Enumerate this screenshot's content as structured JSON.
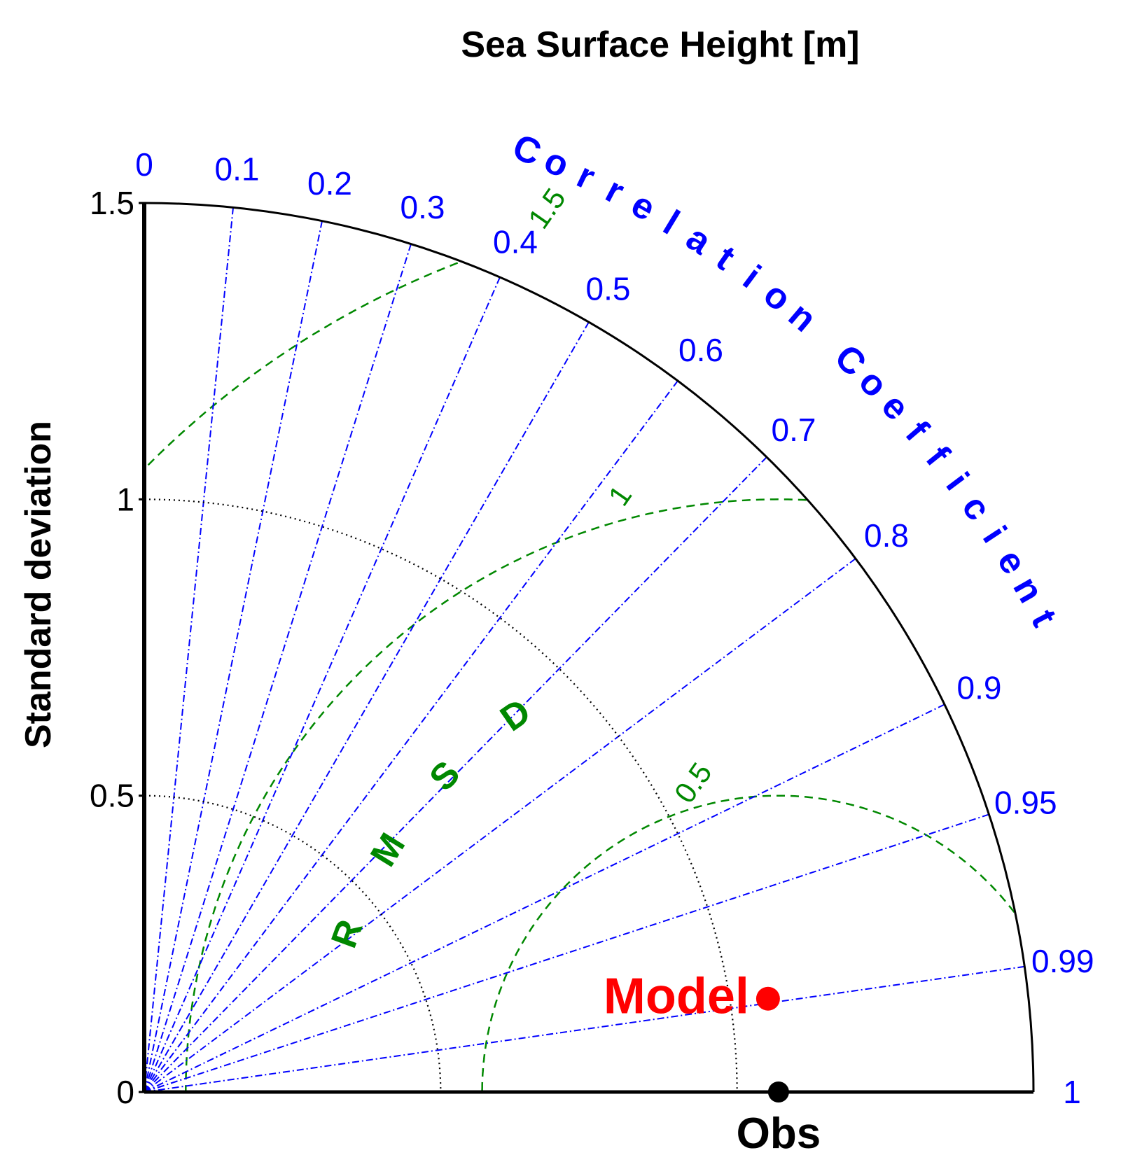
{
  "colors": {
    "axis": "#000000",
    "correlation": "#0000ff",
    "rmsd": "#008800",
    "std_arc": "#000000",
    "model": "#ff0000",
    "obs": "#000000"
  },
  "chart_data": {
    "type": "taylor",
    "title": "Sea Surface Height [m]",
    "ylabel": "Standard deviation",
    "corr_axis_label": "Correlation Coefficient",
    "rmsd_axis_label": "RMSD",
    "std_range": [
      0,
      1.5
    ],
    "std_ticks": [
      0,
      0.5,
      1,
      1.5
    ],
    "std_tick_labels": [
      "0",
      "0.5",
      "1",
      "1.5"
    ],
    "std_arcs": [
      0.5,
      1
    ],
    "corr_ticks": [
      0,
      0.1,
      0.2,
      0.3,
      0.4,
      0.5,
      0.6,
      0.7,
      0.8,
      0.9,
      0.95,
      0.99,
      1
    ],
    "corr_tick_labels": [
      "0",
      "0.1",
      "0.2",
      "0.3",
      "0.4",
      "0.5",
      "0.6",
      "0.7",
      "0.8",
      "0.9",
      "0.95",
      "0.99",
      "1"
    ],
    "rmsd_contours": [
      0.5,
      1,
      1.5
    ],
    "rmsd_labels": [
      "0.5",
      "1",
      "1.5"
    ],
    "points": [
      {
        "label": "Model",
        "std": 1.064,
        "corr": 0.989
      },
      {
        "label": "Obs",
        "std": 1.07,
        "corr": 1
      }
    ]
  }
}
